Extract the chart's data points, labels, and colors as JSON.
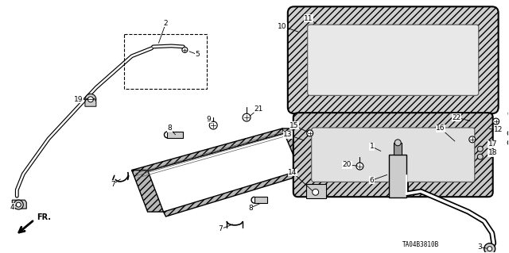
{
  "bg_color": "#ffffff",
  "diagram_id": "TA04B3810B",
  "fg": "#111111",
  "gray": "#999999",
  "lgray": "#cccccc",
  "dgray": "#555555"
}
